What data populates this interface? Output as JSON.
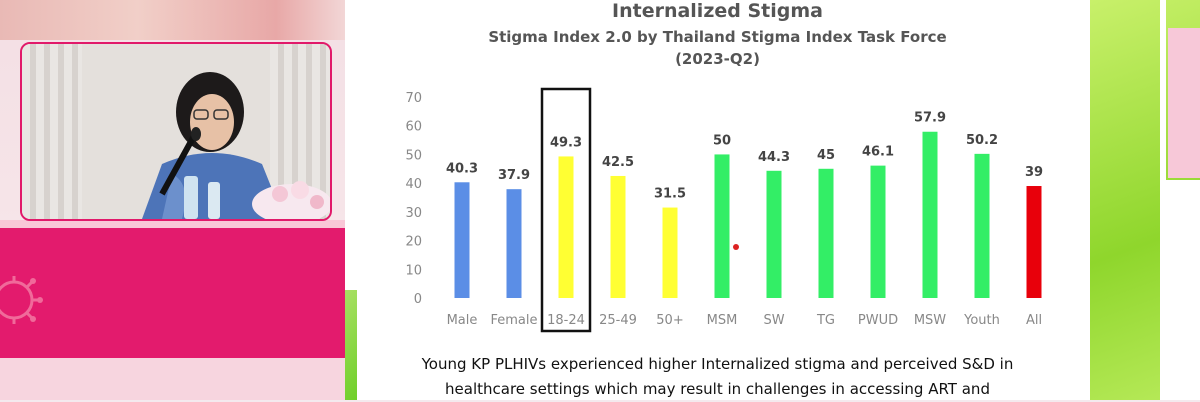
{
  "slide": {
    "title": "Internalized Stigma",
    "subtitle_line1": "Stigma Index 2.0 by Thailand Stigma Index Task Force",
    "subtitle_line2": "(2023-Q2)",
    "caption_line1": "Young KP PLHIVs experienced higher Internalized stigma and perceived S&D in",
    "caption_line2": "healthcare settings which may result in challenges in accessing ART and"
  },
  "colors": {
    "blue": "#5b8ee6",
    "yellow": "#ffff33",
    "green": "#33ee66",
    "red": "#e8000b",
    "magenta": "#e31b6d"
  },
  "chart_data": {
    "type": "bar",
    "title": "Internalized Stigma",
    "subtitle": "Stigma Index 2.0 by Thailand Stigma Index Task Force (2023-Q2)",
    "categories": [
      "Male",
      "Female",
      "18-24",
      "25-49",
      "50+",
      "MSM",
      "SW",
      "TG",
      "PWUD",
      "MSW",
      "Youth",
      "All"
    ],
    "values": [
      40.3,
      37.9,
      49.3,
      42.5,
      31.5,
      50,
      44.3,
      45,
      46.1,
      57.9,
      50.2,
      39
    ],
    "value_labels": [
      "40.3",
      "37.9",
      "49.3",
      "42.5",
      "31.5",
      "50",
      "44.3",
      "45",
      "46.1",
      "57.9",
      "50.2",
      "39"
    ],
    "bar_colors": [
      "#5b8ee6",
      "#5b8ee6",
      "#ffff33",
      "#ffff33",
      "#ffff33",
      "#33ee66",
      "#33ee66",
      "#33ee66",
      "#33ee66",
      "#33ee66",
      "#33ee66",
      "#e8000b"
    ],
    "highlighted_category": "18-24",
    "yticks": [
      "0",
      "10",
      "20",
      "30",
      "40",
      "50",
      "60",
      "70"
    ],
    "ylim": [
      0,
      70
    ],
    "xlabel": "",
    "ylabel": "",
    "grid": false,
    "legend": "none"
  }
}
